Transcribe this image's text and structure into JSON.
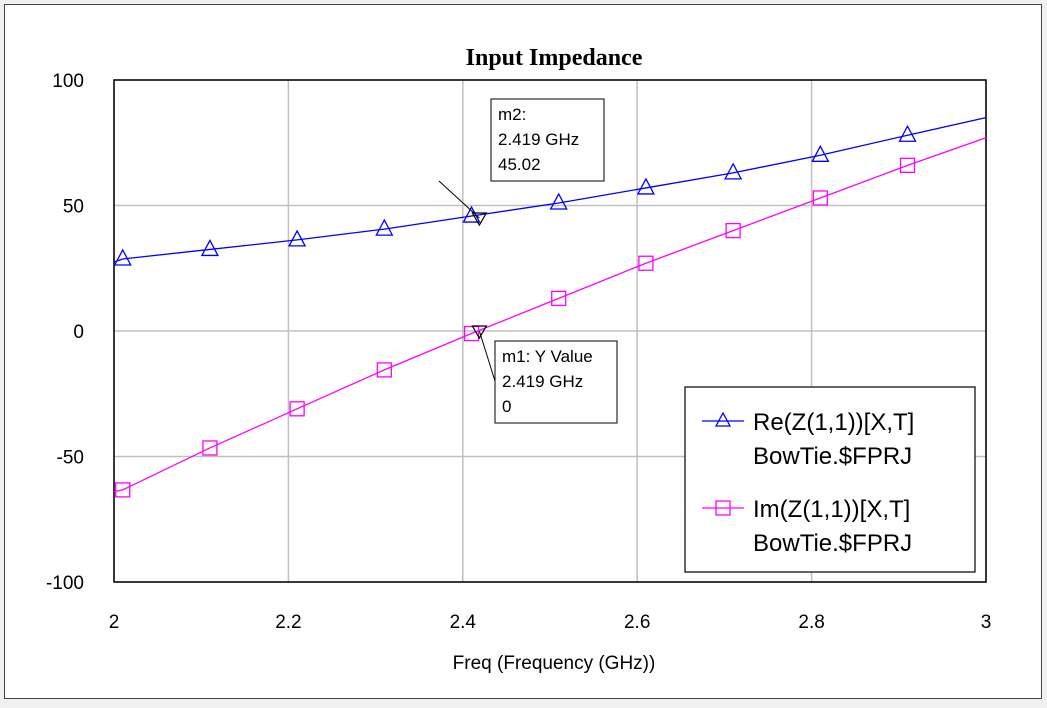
{
  "chart_data": {
    "type": "line",
    "title": "Input Impedance",
    "xlabel": "Freq (Frequency (GHz))",
    "ylabel": "",
    "xlim": [
      2,
      3
    ],
    "ylim": [
      -100,
      100
    ],
    "xticks": [
      "2",
      "2.2",
      "2.4",
      "2.6",
      "2.8",
      "3"
    ],
    "yticks": [
      "100",
      "50",
      "0",
      "-50",
      "-100"
    ],
    "grid": true,
    "legend_position": "bottom-right",
    "x": [
      2.0,
      2.01,
      2.11,
      2.21,
      2.31,
      2.41,
      2.51,
      2.61,
      2.71,
      2.81,
      2.91,
      3.0
    ],
    "series": [
      {
        "name": "Re(Z(1,1))[X,T]",
        "name2": "BowTie.$FPRJ",
        "color": "#0000ff",
        "marker": "triangle",
        "values": [
          27.5,
          28.7,
          32.5,
          36.3,
          40.6,
          45.8,
          51,
          57,
          63,
          70,
          78,
          85
        ]
      },
      {
        "name": "Im(Z(1,1))[X,T]",
        "name2": "BowTie.$FPRJ",
        "color": "#ff00ff",
        "marker": "square",
        "values": [
          -64,
          -63.3,
          -46.6,
          -31,
          -15.5,
          -1,
          13,
          27,
          40,
          53,
          66,
          77
        ]
      }
    ],
    "markers": [
      {
        "id": "m2",
        "lines": [
          "m2:",
          "2.419 GHz",
          "45.02"
        ],
        "x": 2.419,
        "y": 45.02
      },
      {
        "id": "m1",
        "lines": [
          "m1: Y Value",
          "2.419 GHz",
          "0"
        ],
        "x": 2.419,
        "y": 0
      }
    ]
  }
}
